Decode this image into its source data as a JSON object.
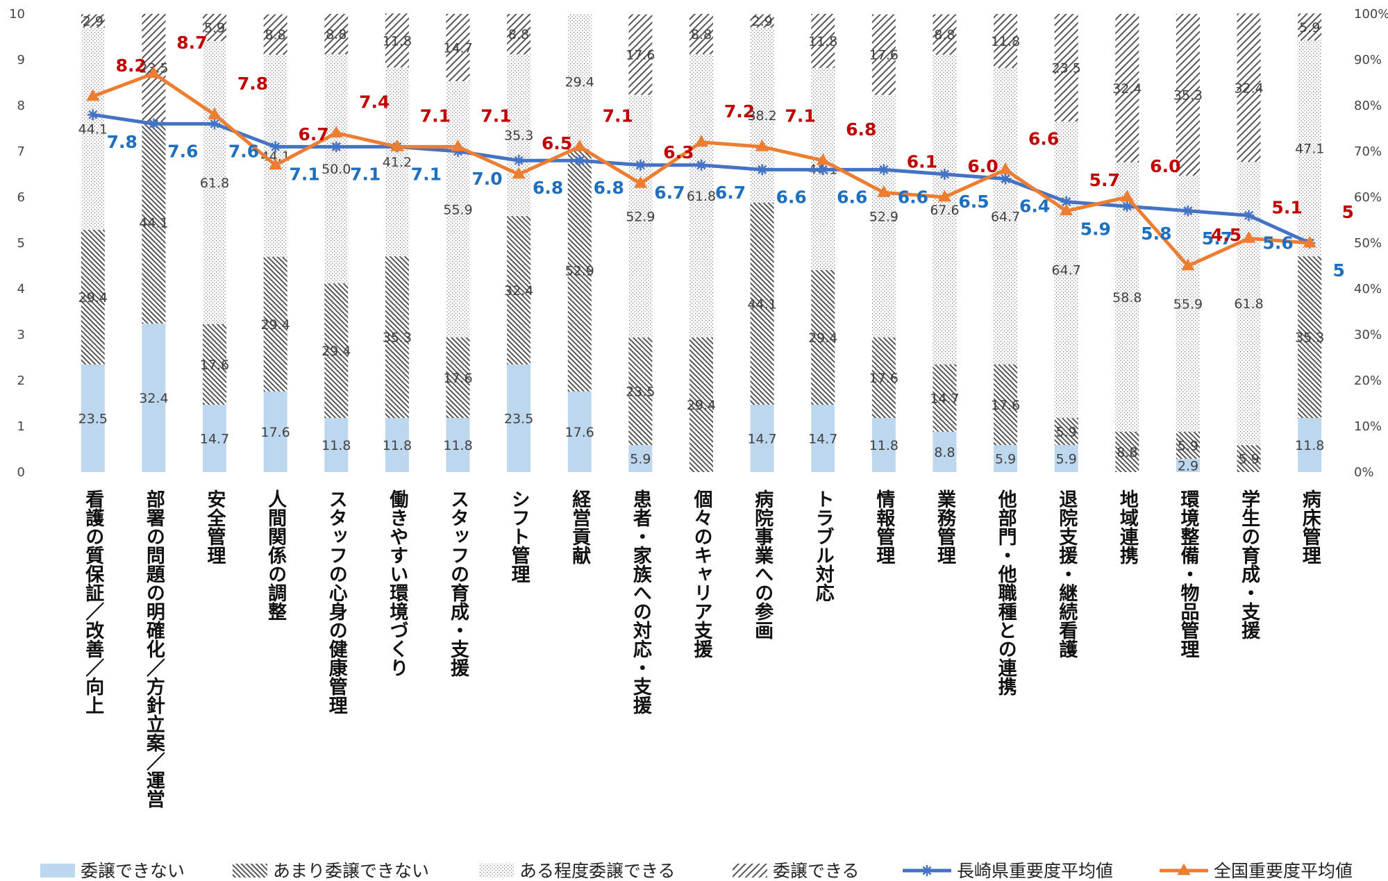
{
  "colors": {
    "seg1": "#bdd7ee",
    "seg_pattern": "#555555",
    "line_nagasaki": "#4472c4",
    "line_national": "#ed7d31",
    "label_nagasaki": "#1f6fbf",
    "label_national": "#c00000"
  },
  "icons": {
    "nagasaki_marker": "asterisk-marker",
    "national_marker": "triangle-marker"
  },
  "chart_data": {
    "type": "bar",
    "stacked": "percent",
    "categories": [
      "看護の質保証／改善／向上",
      "部署の問題の明確化／方針立案／運営",
      "安全管理",
      "人間関係の調整",
      "スタッフの心身の健康管理",
      "働きやすい環境づくり",
      "スタッフの育成・支援",
      "シフト管理",
      "経営貢献",
      "患者・家族への対応・支援",
      "個々のキャリア支援",
      "病院事業への参画",
      "トラブル対応",
      "情報管理",
      "業務管理",
      "他部門・他職種との連携",
      "退院支援・継続看護",
      "地域連携",
      "環境整備・物品管理",
      "学生の育成・支援",
      "病床管理"
    ],
    "series": [
      {
        "name": "委譲できない",
        "pattern": "solid",
        "values": [
          23.5,
          32.4,
          14.7,
          17.6,
          11.8,
          11.8,
          11.8,
          23.5,
          17.6,
          5.9,
          0,
          14.7,
          14.7,
          11.8,
          8.8,
          5.9,
          5.9,
          0,
          2.9,
          0,
          11.8
        ]
      },
      {
        "name": "あまり委譲できない",
        "pattern": "dense-diagonal",
        "values": [
          29.4,
          44.1,
          17.6,
          29.4,
          29.4,
          35.3,
          17.6,
          32.4,
          52.9,
          23.5,
          29.4,
          44.1,
          29.4,
          17.6,
          14.7,
          17.6,
          5.9,
          8.8,
          5.9,
          5.9,
          35.3
        ]
      },
      {
        "name": "ある程度委譲できる",
        "pattern": "dots",
        "values": [
          44.1,
          0,
          61.8,
          44.1,
          50.0,
          41.2,
          55.9,
          35.3,
          29.4,
          52.9,
          61.8,
          38.2,
          44.1,
          52.9,
          67.6,
          64.7,
          64.7,
          58.8,
          55.9,
          61.8,
          47.1
        ]
      },
      {
        "name": "委譲できる",
        "pattern": "sparse-diagonal",
        "values": [
          2.9,
          23.5,
          5.9,
          8.8,
          8.8,
          11.8,
          14.7,
          8.8,
          0,
          17.6,
          8.8,
          2.9,
          11.8,
          17.6,
          8.8,
          11.8,
          23.5,
          32.4,
          35.3,
          32.4,
          5.9
        ]
      }
    ],
    "segment_labels": [
      [
        "23.5",
        "29.4",
        "44.1",
        "2.9"
      ],
      [
        "32.4",
        "44.1",
        "",
        "23.5"
      ],
      [
        "14.7",
        "17.6",
        "61.8",
        "5.9"
      ],
      [
        "17.6",
        "29.4",
        "44.1",
        "8.8"
      ],
      [
        "11.8",
        "29.4",
        "50.0",
        "8.8"
      ],
      [
        "11.8",
        "35.3",
        "41.2",
        "11.8"
      ],
      [
        "11.8",
        "17.6",
        "55.9",
        "14.7"
      ],
      [
        "23.5",
        "32.4",
        "35.3",
        "8.8"
      ],
      [
        "17.6",
        "52.9",
        "29.4",
        ""
      ],
      [
        "5.9",
        "23.5",
        "52.9",
        "17.6"
      ],
      [
        "",
        "29.4",
        "61.8",
        "8.8"
      ],
      [
        "14.7",
        "44.1",
        "38.2",
        "2.9"
      ],
      [
        "14.7",
        "29.4",
        "44.1",
        "11.8"
      ],
      [
        "11.8",
        "17.6",
        "52.9",
        "17.6"
      ],
      [
        "8.8",
        "14.7",
        "67.6",
        "8.8"
      ],
      [
        "5.9",
        "17.6",
        "64.7",
        "11.8"
      ],
      [
        "5.9",
        "5.9",
        "64.7",
        "23.5"
      ],
      [
        "",
        "8.8",
        "58.8",
        "32.4"
      ],
      [
        "2.9",
        "5.9",
        "55.9",
        "35.3"
      ],
      [
        "",
        "5.9",
        "61.8",
        "32.4"
      ],
      [
        "11.8",
        "35.3",
        "47.1",
        "5.9"
      ]
    ],
    "lines": [
      {
        "name": "長崎県重要度平均値",
        "marker": "asterisk",
        "values": [
          7.8,
          7.6,
          7.6,
          7.1,
          7.1,
          7.1,
          7.0,
          6.8,
          6.8,
          6.7,
          6.7,
          6.6,
          6.6,
          6.6,
          6.5,
          6.4,
          5.9,
          5.8,
          5.7,
          5.6,
          5.0
        ],
        "labels": [
          "7.8",
          "7.6",
          "7.6",
          "7.1",
          "7.1",
          "7.1",
          "7.0",
          "6.8",
          "6.8",
          "6.7",
          "6.7",
          "6.6",
          "6.6",
          "6.6",
          "6.5",
          "6.4",
          "5.9",
          "5.8",
          "5.7",
          "5.6",
          "5"
        ]
      },
      {
        "name": "全国重要度平均値",
        "marker": "triangle",
        "values": [
          8.2,
          8.7,
          7.8,
          6.7,
          7.4,
          7.1,
          7.1,
          6.5,
          7.1,
          6.3,
          7.2,
          7.1,
          6.8,
          6.1,
          6.0,
          6.6,
          5.7,
          6.0,
          4.5,
          5.1,
          5.0
        ],
        "labels": [
          "8.2",
          "8.7",
          "7.8",
          "6.7",
          "7.4",
          "7.1",
          "7.1",
          "6.5",
          "7.1",
          "6.3",
          "7.2",
          "7.1",
          "6.8",
          "6.1",
          "6.0",
          "6.6",
          "5.7",
          "6.0",
          "4.5",
          "5.1",
          "5"
        ]
      }
    ],
    "y_left": {
      "min": 0,
      "max": 10,
      "ticks": [
        "0",
        "1",
        "2",
        "3",
        "4",
        "5",
        "6",
        "7",
        "8",
        "9",
        "10"
      ]
    },
    "y_right": {
      "min": 0,
      "max": 100,
      "ticks": [
        "0%",
        "10%",
        "20%",
        "30%",
        "40%",
        "50%",
        "60%",
        "70%",
        "80%",
        "90%",
        "100%"
      ]
    },
    "legend": {
      "position": "bottom",
      "items": [
        "委譲できない",
        "あまり委譲できない",
        "ある程度委譲できる",
        "委譲できる",
        "長崎県重要度平均値",
        "全国重要度平均値"
      ]
    },
    "grid": false
  }
}
